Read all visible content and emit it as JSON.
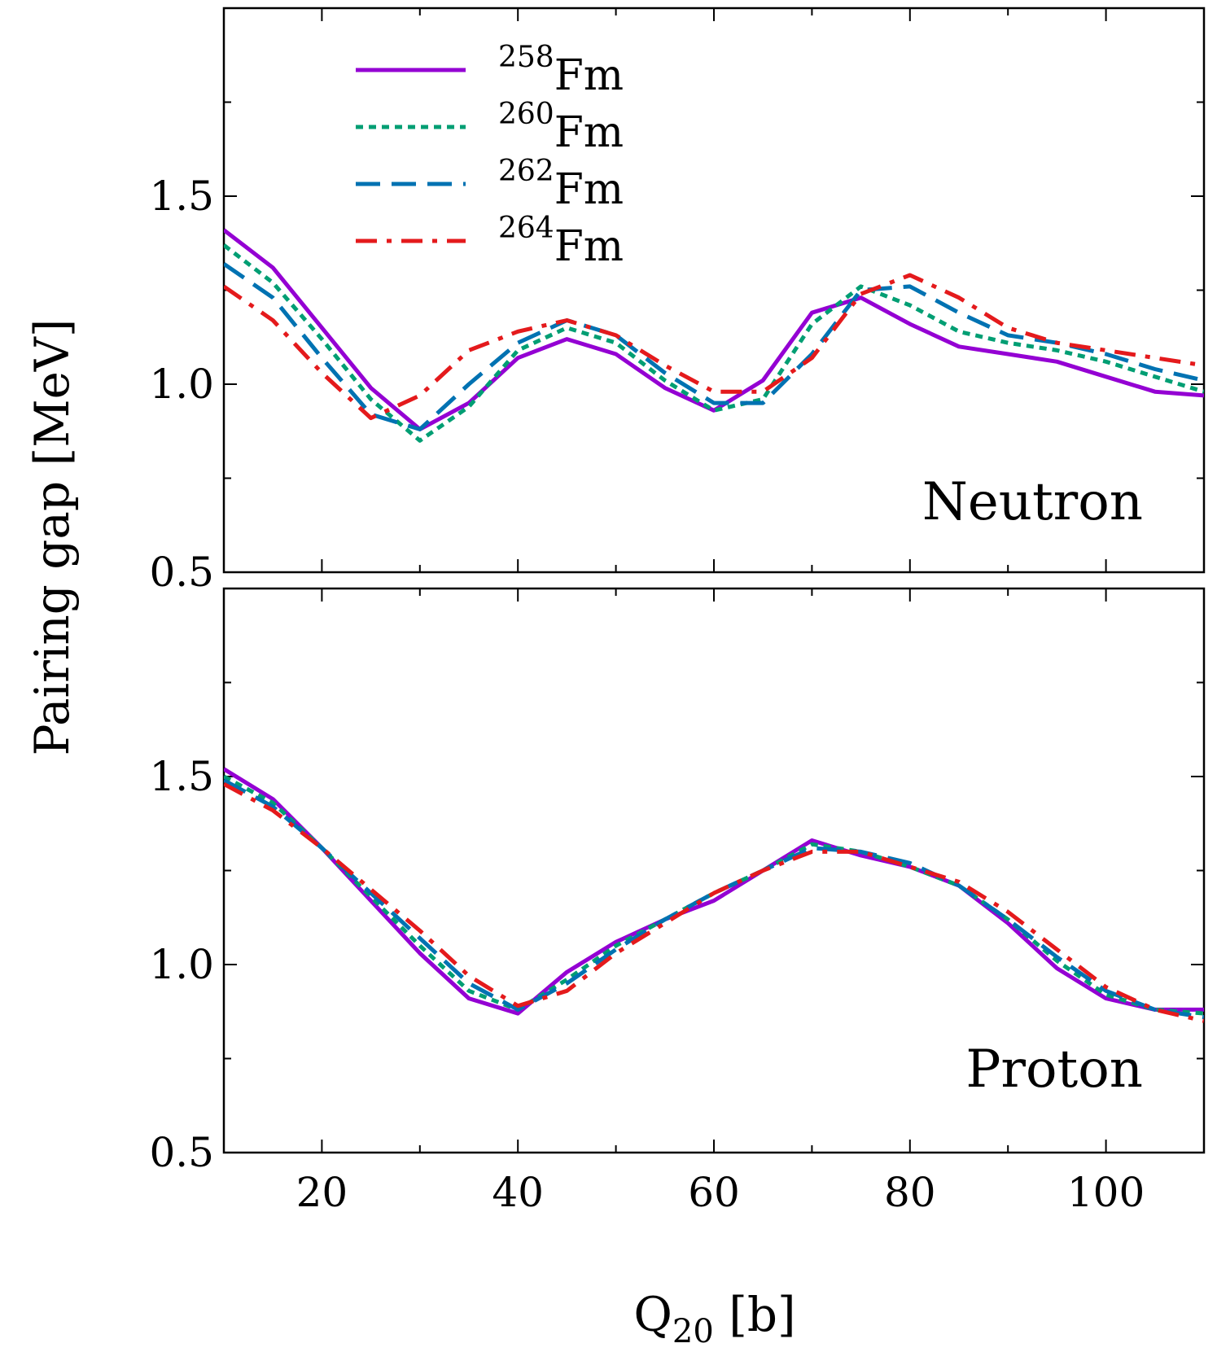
{
  "chart_data": [
    {
      "type": "line",
      "panel_label": "Neutron",
      "xlim": [
        10,
        110
      ],
      "ylim": [
        0.5,
        2.0
      ],
      "yticks": [
        0.5,
        1.0,
        1.5
      ],
      "ytick_labels": [
        "0.5",
        "1.0",
        "1.5"
      ],
      "legend": {
        "placement": "top-left"
      },
      "series": [
        {
          "name_mass": "258",
          "name_symbol": "Fm",
          "style": "solid",
          "color": "#9400D3",
          "x": [
            10,
            15,
            20,
            25,
            30,
            35,
            40,
            45,
            50,
            55,
            60,
            65,
            70,
            75,
            80,
            85,
            90,
            95,
            100,
            105,
            110
          ],
          "y": [
            1.41,
            1.31,
            1.15,
            0.99,
            0.88,
            0.95,
            1.07,
            1.12,
            1.08,
            0.99,
            0.93,
            1.01,
            1.19,
            1.23,
            1.16,
            1.1,
            1.08,
            1.06,
            1.02,
            0.98,
            0.97
          ]
        },
        {
          "name_mass": "260",
          "name_symbol": "Fm",
          "style": "dotted",
          "color": "#009E73",
          "x": [
            10,
            15,
            20,
            25,
            30,
            35,
            40,
            45,
            50,
            55,
            60,
            65,
            70,
            75,
            80,
            85,
            90,
            95,
            100,
            105,
            110
          ],
          "y": [
            1.37,
            1.27,
            1.12,
            0.96,
            0.85,
            0.94,
            1.09,
            1.15,
            1.11,
            1.01,
            0.93,
            0.96,
            1.16,
            1.26,
            1.21,
            1.14,
            1.11,
            1.09,
            1.06,
            1.02,
            0.98
          ]
        },
        {
          "name_mass": "262",
          "name_symbol": "Fm",
          "style": "dashed",
          "color": "#0072B2",
          "x": [
            10,
            15,
            20,
            25,
            30,
            35,
            40,
            45,
            50,
            55,
            60,
            65,
            70,
            75,
            80,
            85,
            90,
            95,
            100,
            105,
            110
          ],
          "y": [
            1.32,
            1.23,
            1.07,
            0.92,
            0.88,
            1.0,
            1.11,
            1.17,
            1.13,
            1.03,
            0.95,
            0.95,
            1.08,
            1.25,
            1.26,
            1.19,
            1.13,
            1.11,
            1.08,
            1.04,
            1.01
          ]
        },
        {
          "name_mass": "264",
          "name_symbol": "Fm",
          "style": "dashdot",
          "color": "#E41A1C",
          "x": [
            10,
            15,
            20,
            25,
            30,
            35,
            40,
            45,
            50,
            55,
            60,
            65,
            70,
            75,
            80,
            85,
            90,
            95,
            100,
            105,
            110
          ],
          "y": [
            1.26,
            1.17,
            1.03,
            0.91,
            0.97,
            1.09,
            1.14,
            1.17,
            1.13,
            1.05,
            0.98,
            0.98,
            1.07,
            1.24,
            1.29,
            1.23,
            1.15,
            1.11,
            1.09,
            1.07,
            1.05
          ]
        }
      ]
    },
    {
      "type": "line",
      "panel_label": "Proton",
      "xlim": [
        10,
        110
      ],
      "ylim": [
        0.5,
        2.0
      ],
      "yticks": [
        0.5,
        1.0,
        1.5
      ],
      "ytick_labels": [
        "0.5",
        "1.0",
        "1.5"
      ],
      "series": [
        {
          "name_mass": "258",
          "name_symbol": "Fm",
          "style": "solid",
          "color": "#9400D3",
          "x": [
            10,
            15,
            20,
            25,
            30,
            35,
            40,
            45,
            50,
            55,
            60,
            65,
            70,
            75,
            80,
            85,
            90,
            95,
            100,
            105,
            110
          ],
          "y": [
            1.52,
            1.44,
            1.31,
            1.17,
            1.03,
            0.91,
            0.87,
            0.98,
            1.06,
            1.12,
            1.17,
            1.25,
            1.33,
            1.29,
            1.26,
            1.21,
            1.11,
            0.99,
            0.91,
            0.88,
            0.88
          ]
        },
        {
          "name_mass": "260",
          "name_symbol": "Fm",
          "style": "dotted",
          "color": "#009E73",
          "x": [
            10,
            15,
            20,
            25,
            30,
            35,
            40,
            45,
            50,
            55,
            60,
            65,
            70,
            75,
            80,
            85,
            90,
            95,
            100,
            105,
            110
          ],
          "y": [
            1.5,
            1.43,
            1.31,
            1.18,
            1.05,
            0.93,
            0.88,
            0.96,
            1.05,
            1.12,
            1.19,
            1.25,
            1.32,
            1.3,
            1.26,
            1.21,
            1.12,
            1.01,
            0.92,
            0.88,
            0.87
          ]
        },
        {
          "name_mass": "262",
          "name_symbol": "Fm",
          "style": "dashed",
          "color": "#0072B2",
          "x": [
            10,
            15,
            20,
            25,
            30,
            35,
            40,
            45,
            50,
            55,
            60,
            65,
            70,
            75,
            80,
            85,
            90,
            95,
            100,
            105,
            110
          ],
          "y": [
            1.49,
            1.42,
            1.31,
            1.19,
            1.07,
            0.95,
            0.88,
            0.95,
            1.04,
            1.12,
            1.19,
            1.25,
            1.31,
            1.3,
            1.27,
            1.21,
            1.12,
            1.02,
            0.93,
            0.88,
            0.86
          ]
        },
        {
          "name_mass": "264",
          "name_symbol": "Fm",
          "style": "dashdot",
          "color": "#E41A1C",
          "x": [
            10,
            15,
            20,
            25,
            30,
            35,
            40,
            45,
            50,
            55,
            60,
            65,
            70,
            75,
            80,
            85,
            90,
            95,
            100,
            105,
            110
          ],
          "y": [
            1.48,
            1.41,
            1.31,
            1.2,
            1.09,
            0.97,
            0.89,
            0.93,
            1.03,
            1.11,
            1.19,
            1.25,
            1.3,
            1.3,
            1.26,
            1.22,
            1.14,
            1.04,
            0.94,
            0.88,
            0.85
          ]
        }
      ]
    }
  ],
  "axes": {
    "xticks": [
      20,
      40,
      60,
      80,
      100
    ],
    "xtick_labels": [
      "20",
      "40",
      "60",
      "80",
      "100"
    ],
    "xlabel_main": "Q",
    "xlabel_sub": "20",
    "xlabel_unit": " [b]",
    "ylabel": "Pairing gap [MeV]"
  }
}
